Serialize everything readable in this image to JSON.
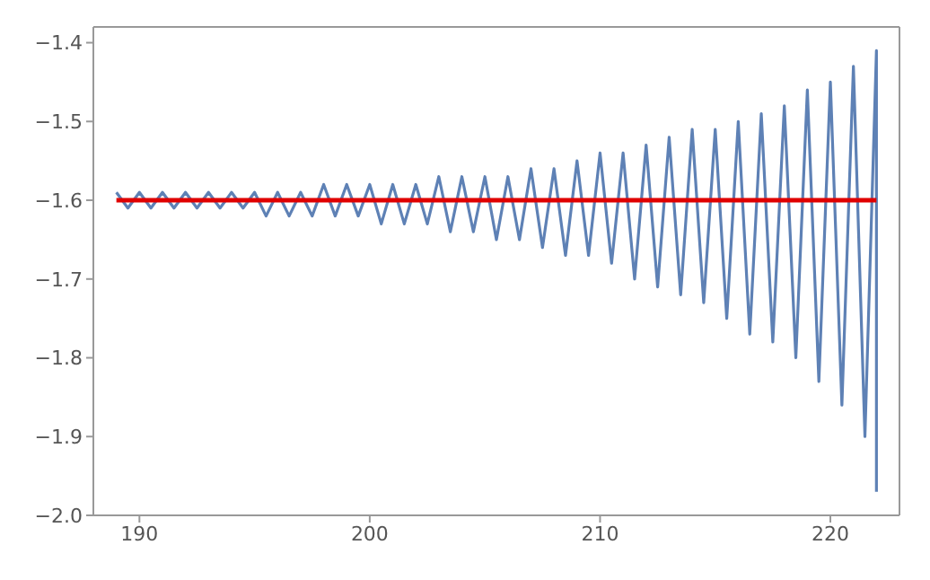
{
  "chart_data": {
    "type": "line",
    "xlim": [
      188,
      223
    ],
    "xticks": [
      190,
      200,
      210,
      220
    ],
    "ylim": [
      -2.0,
      -1.38
    ],
    "yticks": [
      {
        "value": -2.0,
        "label": "−2.0"
      },
      -1.9,
      -1.8,
      -1.7,
      -1.6,
      -1.5,
      -1.4
    ],
    "marker": "none",
    "line_style": "solid",
    "series": [
      {
        "color": "#5e81b5",
        "x": [
          189,
          189.5,
          190,
          190.5,
          191,
          191.5,
          192,
          192.5,
          193,
          193.5,
          194,
          194.5,
          195,
          195.5,
          196,
          196.5,
          197,
          197.5,
          198,
          198.5,
          199,
          199.5,
          200,
          200.5,
          201,
          201.5,
          202,
          202.5,
          203,
          203.5,
          204,
          204.5,
          205,
          205.5,
          206,
          206.5,
          207,
          207.5,
          208,
          208.5,
          209,
          209.5,
          210,
          210.5,
          211,
          211.5,
          212,
          212.5,
          213,
          213.5,
          214,
          214.5,
          215,
          215.5,
          216,
          216.5,
          217,
          217.5,
          218,
          218.5,
          219,
          219.5,
          220,
          220.5,
          221,
          221.5,
          222,
          222
        ],
        "values": [
          -1.59,
          -1.61,
          -1.59,
          -1.61,
          -1.59,
          -1.61,
          -1.59,
          -1.61,
          -1.59,
          -1.61,
          -1.59,
          -1.61,
          -1.59,
          -1.62,
          -1.59,
          -1.62,
          -1.59,
          -1.62,
          -1.58,
          -1.62,
          -1.58,
          -1.62,
          -1.58,
          -1.63,
          -1.58,
          -1.63,
          -1.58,
          -1.63,
          -1.57,
          -1.64,
          -1.57,
          -1.64,
          -1.57,
          -1.65,
          -1.57,
          -1.65,
          -1.56,
          -1.66,
          -1.56,
          -1.67,
          -1.55,
          -1.67,
          -1.54,
          -1.68,
          -1.54,
          -1.7,
          -1.53,
          -1.71,
          -1.52,
          -1.72,
          -1.51,
          -1.73,
          -1.51,
          -1.75,
          -1.5,
          -1.77,
          -1.49,
          -1.78,
          -1.48,
          -1.8,
          -1.46,
          -1.83,
          -1.45,
          -1.86,
          -1.43,
          -1.9,
          -1.41,
          -1.97
        ]
      },
      {
        "type": "line",
        "color": "#e00000",
        "x": [
          189,
          222
        ],
        "values": [
          -1.6,
          -1.6
        ]
      }
    ]
  }
}
